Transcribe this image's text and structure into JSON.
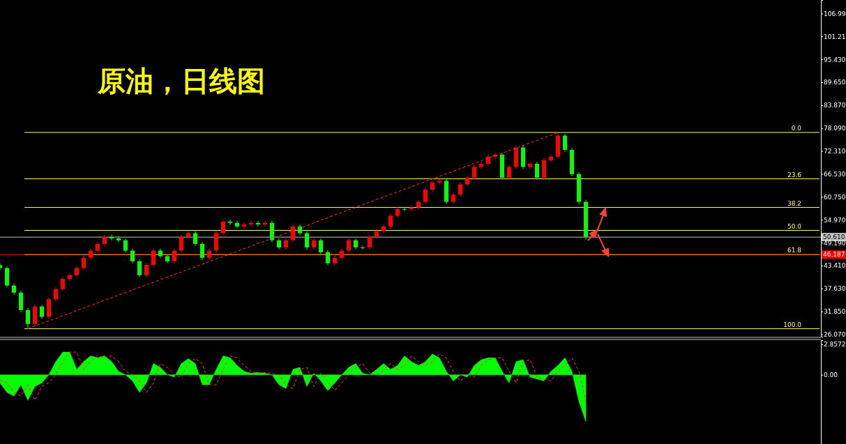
{
  "chart_data": [
    {
      "type": "candlestick",
      "title": "原油，日线图",
      "categories": [
        null,
        null,
        null,
        null,
        null,
        null,
        null,
        null,
        null,
        null,
        null,
        null,
        null,
        null,
        null,
        null,
        null,
        null,
        null,
        null,
        null,
        null,
        null,
        null,
        null,
        null,
        null,
        null,
        null,
        null,
        null,
        null,
        null,
        null,
        null,
        null,
        null,
        null,
        null,
        null,
        null,
        null,
        null,
        null,
        null,
        null,
        null,
        null,
        null,
        null,
        null,
        null,
        null,
        null,
        null,
        null,
        null,
        null,
        null,
        null,
        null,
        null,
        null,
        null,
        null,
        null,
        null,
        null,
        null,
        null,
        null,
        null,
        null,
        null,
        null,
        null,
        null,
        null,
        null,
        null,
        null,
        null,
        null,
        null,
        null
      ],
      "ohlc": [
        [
          43.5,
          44.0,
          42.3,
          42.8
        ],
        [
          42.8,
          43.3,
          37.9,
          38.4
        ],
        [
          38.4,
          38.9,
          36.1,
          36.6
        ],
        [
          36.6,
          37.1,
          31.7,
          32.2
        ],
        [
          32.2,
          32.7,
          27.5,
          28.7
        ],
        [
          28.7,
          33.6,
          28.2,
          33.1
        ],
        [
          33.1,
          33.6,
          30.0,
          30.5
        ],
        [
          30.5,
          35.4,
          30.0,
          34.9
        ],
        [
          34.9,
          38.0,
          34.4,
          37.5
        ],
        [
          37.5,
          40.6,
          37.0,
          40.1
        ],
        [
          40.1,
          41.5,
          39.6,
          41.0
        ],
        [
          41.0,
          43.3,
          40.5,
          42.8
        ],
        [
          42.8,
          45.9,
          42.3,
          45.4
        ],
        [
          45.4,
          47.7,
          44.9,
          47.2
        ],
        [
          47.2,
          49.4,
          46.7,
          48.9
        ],
        [
          48.9,
          51.2,
          48.4,
          50.7
        ],
        [
          50.7,
          51.2,
          49.8,
          50.3
        ],
        [
          50.3,
          50.8,
          49.3,
          49.8
        ],
        [
          49.8,
          50.3,
          46.7,
          47.2
        ],
        [
          47.2,
          47.7,
          44.0,
          44.5
        ],
        [
          44.5,
          45.0,
          40.5,
          41.0
        ],
        [
          41.0,
          44.1,
          40.5,
          43.6
        ],
        [
          43.6,
          47.7,
          43.1,
          47.2
        ],
        [
          47.2,
          47.7,
          45.3,
          45.8
        ],
        [
          45.8,
          46.3,
          44.0,
          44.5
        ],
        [
          44.5,
          47.7,
          44.0,
          47.2
        ],
        [
          47.2,
          51.2,
          46.7,
          50.7
        ],
        [
          50.7,
          52.1,
          50.2,
          51.6
        ],
        [
          51.6,
          52.1,
          48.4,
          48.9
        ],
        [
          48.9,
          49.4,
          44.9,
          45.4
        ],
        [
          45.4,
          47.7,
          44.9,
          47.2
        ],
        [
          47.2,
          52.1,
          46.7,
          51.6
        ],
        [
          51.6,
          55.0,
          51.1,
          54.5
        ],
        [
          54.5,
          55.0,
          53.7,
          54.2
        ],
        [
          54.2,
          54.7,
          52.8,
          53.3
        ],
        [
          53.3,
          54.3,
          52.8,
          53.8
        ],
        [
          53.8,
          54.7,
          53.3,
          54.2
        ],
        [
          54.2,
          54.7,
          53.3,
          53.8
        ],
        [
          53.8,
          54.7,
          53.3,
          54.2
        ],
        [
          54.2,
          54.7,
          49.3,
          49.8
        ],
        [
          49.8,
          50.3,
          47.5,
          48.0
        ],
        [
          48.0,
          50.3,
          47.5,
          49.8
        ],
        [
          49.8,
          53.8,
          49.3,
          53.3
        ],
        [
          53.3,
          53.8,
          51.1,
          51.6
        ],
        [
          51.6,
          52.1,
          47.5,
          48.0
        ],
        [
          48.0,
          50.3,
          47.5,
          49.8
        ],
        [
          49.8,
          50.3,
          46.3,
          46.8
        ],
        [
          46.8,
          47.3,
          43.5,
          44.0
        ],
        [
          44.0,
          45.9,
          43.5,
          45.4
        ],
        [
          45.4,
          47.7,
          44.9,
          47.2
        ],
        [
          47.2,
          50.3,
          46.7,
          49.8
        ],
        [
          49.8,
          50.3,
          47.5,
          48.0
        ],
        [
          48.0,
          48.5,
          47.5,
          48.0
        ],
        [
          48.0,
          51.2,
          47.5,
          50.7
        ],
        [
          50.7,
          52.6,
          50.2,
          52.1
        ],
        [
          52.1,
          53.8,
          51.6,
          53.3
        ],
        [
          53.3,
          56.5,
          52.8,
          56.0
        ],
        [
          56.0,
          58.2,
          55.5,
          57.7
        ],
        [
          57.7,
          58.2,
          57.2,
          57.7
        ],
        [
          57.7,
          58.6,
          57.2,
          58.1
        ],
        [
          58.1,
          60.0,
          57.6,
          59.5
        ],
        [
          59.5,
          63.1,
          59.0,
          62.6
        ],
        [
          62.6,
          64.9,
          62.1,
          64.4
        ],
        [
          64.4,
          65.3,
          63.9,
          64.8
        ],
        [
          64.8,
          65.3,
          59.0,
          59.5
        ],
        [
          59.5,
          61.8,
          59.0,
          61.3
        ],
        [
          61.3,
          64.4,
          60.8,
          63.9
        ],
        [
          63.9,
          66.1,
          63.4,
          65.6
        ],
        [
          65.6,
          68.8,
          65.1,
          68.3
        ],
        [
          68.3,
          69.6,
          67.8,
          69.1
        ],
        [
          69.1,
          71.4,
          68.6,
          70.9
        ],
        [
          70.9,
          71.9,
          70.4,
          71.4
        ],
        [
          71.4,
          71.9,
          65.1,
          65.6
        ],
        [
          65.6,
          68.8,
          65.1,
          68.3
        ],
        [
          68.3,
          73.7,
          67.8,
          73.2
        ],
        [
          73.2,
          73.7,
          67.8,
          68.3
        ],
        [
          68.3,
          69.6,
          67.8,
          69.1
        ],
        [
          69.1,
          69.6,
          65.1,
          65.6
        ],
        [
          65.6,
          70.5,
          65.1,
          70.0
        ],
        [
          70.0,
          71.4,
          69.5,
          70.9
        ],
        [
          70.9,
          77.0,
          70.4,
          76.2
        ],
        [
          76.2,
          76.7,
          72.1,
          72.6
        ],
        [
          72.6,
          73.1,
          66.0,
          66.5
        ],
        [
          66.5,
          67.0,
          59.0,
          59.5
        ],
        [
          59.5,
          60.0,
          49.9,
          50.61
        ]
      ],
      "colors": [
        "#00ff00",
        "#00ff00",
        "#00ff00",
        "#00ff00",
        "#00ff00",
        "#ff0000",
        "#00ff00",
        "#ff0000",
        "#ff0000",
        "#ff0000",
        "#ff0000",
        "#ff0000",
        "#ff0000",
        "#ff0000",
        "#ff0000",
        "#ff0000",
        "#00ff00",
        "#00ff00",
        "#00ff00",
        "#00ff00",
        "#00ff00",
        "#ff0000",
        "#ff0000",
        "#00ff00",
        "#00ff00",
        "#ff0000",
        "#ff0000",
        "#ff0000",
        "#00ff00",
        "#00ff00",
        "#ff0000",
        "#ff0000",
        "#ff0000",
        "#00ff00",
        "#00ff00",
        "#ff0000",
        "#ff0000",
        "#00ff00",
        "#ff0000",
        "#00ff00",
        "#00ff00",
        "#ff0000",
        "#ff0000",
        "#00ff00",
        "#00ff00",
        "#ff0000",
        "#00ff00",
        "#00ff00",
        "#ff0000",
        "#ff0000",
        "#ff0000",
        "#00ff00",
        "#00ff00",
        "#ff0000",
        "#ff0000",
        "#ff0000",
        "#ff0000",
        "#ff0000",
        "#00ff00",
        "#ff0000",
        "#ff0000",
        "#ff0000",
        "#ff0000",
        "#ff0000",
        "#00ff00",
        "#ff0000",
        "#ff0000",
        "#ff0000",
        "#ff0000",
        "#ff0000",
        "#ff0000",
        "#ff0000",
        "#00ff00",
        "#ff0000",
        "#ff0000",
        "#00ff00",
        "#ff0000",
        "#00ff00",
        "#ff0000",
        "#ff0000",
        "#ff0000",
        "#00ff00",
        "#00ff00",
        "#00ff00",
        "#00ff00"
      ],
      "series": [
        {
          "type": "line",
          "color": "#ff3030",
          "line_style": "dashed",
          "values": [
            null,
            null,
            null,
            null,
            27.5,
            28.2,
            28.8,
            29.5,
            30.1,
            30.8,
            31.4,
            32.1,
            32.7,
            33.4,
            34.0,
            34.7,
            35.3,
            36.0,
            36.6,
            37.3,
            37.9,
            38.6,
            39.2,
            39.9,
            40.5,
            41.2,
            41.8,
            42.5,
            43.1,
            43.8,
            44.4,
            45.1,
            45.7,
            46.4,
            47.0,
            47.7,
            48.3,
            49.0,
            49.6,
            50.3,
            50.9,
            51.6,
            52.2,
            52.9,
            53.5,
            54.2,
            54.9,
            55.5,
            56.2,
            56.8,
            57.5,
            58.1,
            58.8,
            59.4,
            60.1,
            60.7,
            61.4,
            62.0,
            62.7,
            63.3,
            64.0,
            64.6,
            65.3,
            65.9,
            66.6,
            67.2,
            67.9,
            68.5,
            69.2,
            69.8,
            70.5,
            71.1,
            71.8,
            72.4,
            73.1,
            73.7,
            74.4,
            75.0,
            75.7,
            76.3,
            77.0,
            null,
            null,
            null,
            null
          ]
        }
      ],
      "ylim": [
        25.5,
        110.4
      ],
      "yticks": [
        {
          "value": 26.07,
          "label": "26.070"
        },
        {
          "value": 31.85,
          "label": "31.850"
        },
        {
          "value": 37.63,
          "label": "37.630"
        },
        {
          "value": 43.41,
          "label": "43.410"
        },
        {
          "value": 49.19,
          "label": "49.190"
        },
        {
          "value": 54.97,
          "label": "54.970"
        },
        {
          "value": 60.75,
          "label": "60.750"
        },
        {
          "value": 66.53,
          "label": "66.530"
        },
        {
          "value": 72.31,
          "label": "72.310"
        },
        {
          "value": 78.09,
          "label": "78.090"
        },
        {
          "value": 83.87,
          "label": "83.870"
        },
        {
          "value": 89.65,
          "label": "89.650"
        },
        {
          "value": 95.43,
          "label": "95.430"
        },
        {
          "value": 101.21,
          "label": "101.21"
        },
        {
          "value": 106.99,
          "label": "106.99"
        }
      ],
      "ref_lines": [
        {
          "axis": "y",
          "value": 77.0,
          "color": "#ffff66"
        },
        {
          "axis": "y",
          "value": 65.3,
          "color": "#ffff66"
        },
        {
          "axis": "y",
          "value": 58.1,
          "color": "#ffff66"
        },
        {
          "axis": "y",
          "value": 52.3,
          "color": "#ffff66"
        },
        {
          "axis": "y",
          "value": 50.61,
          "label": "50.610",
          "color": "#c0c0c0"
        },
        {
          "axis": "y",
          "value": 46.187,
          "label": "46.187",
          "color": "#ff0000"
        },
        {
          "axis": "y",
          "value": 46.19,
          "color": "#ffa500"
        },
        {
          "axis": "y",
          "value": 27.5,
          "color": "#ffff66"
        }
      ],
      "annotations": [
        {
          "text": "0.0",
          "y": 77.0
        },
        {
          "text": "23.6",
          "y": 65.3
        },
        {
          "text": "38.2",
          "y": 58.1
        },
        {
          "text": "50.0",
          "y": 52.3
        },
        {
          "text": "61.8",
          "y": 46.19
        },
        {
          "text": "100.0",
          "y": 27.5
        }
      ],
      "tick_labels": "y"
    },
    {
      "type": "area",
      "categories": [
        null,
        null,
        null,
        null,
        null,
        null,
        null,
        null,
        null,
        null,
        null,
        null,
        null,
        null,
        null,
        null,
        null,
        null,
        null,
        null,
        null,
        null,
        null,
        null,
        null,
        null,
        null,
        null,
        null,
        null,
        null,
        null,
        null,
        null,
        null,
        null,
        null,
        null,
        null,
        null,
        null,
        null,
        null,
        null,
        null,
        null,
        null,
        null,
        null,
        null,
        null,
        null,
        null,
        null,
        null,
        null,
        null,
        null,
        null,
        null,
        null,
        null,
        null,
        null,
        null,
        null,
        null,
        null,
        null,
        null,
        null,
        null,
        null,
        null,
        null,
        null,
        null,
        null,
        null,
        null,
        null,
        null,
        null,
        null,
        null
      ],
      "series": [
        {
          "type": "area",
          "color": "#00ff00",
          "values": [
            -0.76,
            -1.66,
            -2.0,
            -0.94,
            -2.4,
            -1.1,
            -0.76,
            0,
            1.23,
            2.13,
            2.13,
            0.5,
            1.23,
            1.77,
            1.59,
            1.77,
            1.23,
            0.32,
            0,
            -0.58,
            -1.66,
            -0.76,
            1.05,
            0.69,
            0,
            -0.22,
            1.05,
            1.52,
            1.05,
            -0.94,
            -0.94,
            0.5,
            1.77,
            1.59,
            0.87,
            0.32,
            0.14,
            0.22,
            0.14,
            0,
            -0.94,
            -1.3,
            0.5,
            0.69,
            -1.1,
            0.14,
            -0.58,
            -1.48,
            -0.76,
            0,
            0.69,
            1.05,
            0.14,
            0,
            0.5,
            1.05,
            0.5,
            0.87,
            1.77,
            1.23,
            0.87,
            1.23,
            1.95,
            1.59,
            0.32,
            -0.58,
            0,
            -0.22,
            0.87,
            1.41,
            1.59,
            1.59,
            0.32,
            -0.76,
            1.23,
            1.41,
            -0.22,
            -0.4,
            -0.58,
            0.32,
            0.87,
            1.59,
            0.32,
            -2.5,
            -4.4
          ]
        },
        {
          "type": "line",
          "color": "#ff3030",
          "line_style": "dashed",
          "values": [
            -0.5,
            -0.76,
            -1.66,
            -2.0,
            -0.94,
            -2.4,
            -1.1,
            -0.76,
            0,
            1.23,
            2.13,
            2.13,
            0.5,
            1.23,
            1.77,
            1.59,
            1.77,
            1.23,
            0.32,
            0,
            -0.58,
            -1.66,
            -0.76,
            1.05,
            0.69,
            0,
            -0.22,
            1.05,
            1.52,
            1.05,
            -0.94,
            -0.94,
            0.5,
            1.77,
            1.59,
            0.87,
            0.32,
            0.14,
            0.22,
            0.14,
            0,
            -0.94,
            -1.3,
            0.5,
            0.69,
            -1.1,
            0.14,
            -0.58,
            -1.48,
            -0.76,
            0,
            0.69,
            1.05,
            0.14,
            0,
            0.5,
            1.05,
            0.5,
            0.87,
            1.77,
            1.23,
            0.87,
            1.23,
            1.95,
            1.59,
            0.32,
            -0.58,
            0,
            -0.22,
            0.87,
            1.41,
            1.59,
            1.59,
            0.32,
            -0.76,
            1.23,
            1.41,
            -0.22,
            -0.4,
            -0.58,
            0.32,
            0.87,
            1.59,
            0.32,
            -2.5
          ]
        }
      ],
      "ylim": [
        -6.5,
        3.25
      ],
      "yticks": [
        {
          "value": 2.8572,
          "label": "2.8572"
        },
        {
          "value": 0,
          "label": "0.00"
        }
      ],
      "tick_labels": "y"
    }
  ]
}
